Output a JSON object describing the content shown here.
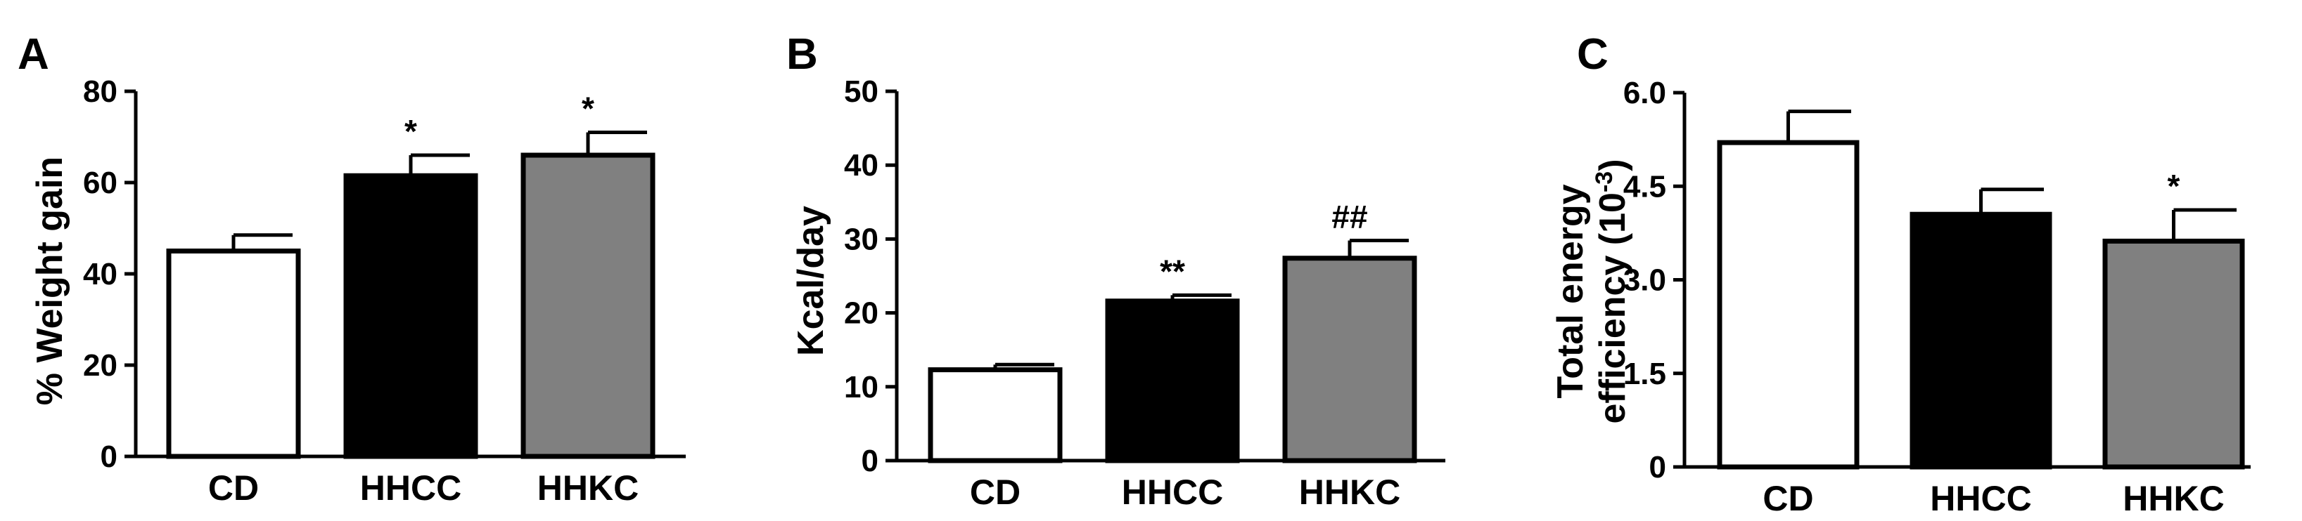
{
  "chart_data": [
    {
      "type": "bar",
      "panel": "A",
      "categories": [
        "CD",
        "HHCC",
        "HHKC"
      ],
      "values": [
        45,
        61.5,
        66
      ],
      "errors": [
        3.5,
        4.5,
        5
      ],
      "annotations": [
        "",
        "*",
        "*"
      ],
      "colors": [
        "#ffffff",
        "#000000",
        "#808080"
      ],
      "ylabel": "% Weight gain",
      "ylim": [
        0,
        80
      ],
      "yticks": [
        "0",
        "20",
        "40",
        "60",
        "80"
      ],
      "grid": false
    },
    {
      "type": "bar",
      "panel": "B",
      "categories": [
        "CD",
        "HHCC",
        "HHKC"
      ],
      "values": [
        12.3,
        21.6,
        27.4
      ],
      "errors": [
        0.7,
        0.8,
        2.4
      ],
      "annotations": [
        "",
        "**",
        "##"
      ],
      "colors": [
        "#ffffff",
        "#000000",
        "#808080"
      ],
      "ylabel": "Kcal/day",
      "ylim": [
        0,
        50
      ],
      "yticks": [
        "0",
        "10",
        "20",
        "30",
        "40",
        "50"
      ],
      "grid": false
    },
    {
      "type": "bar",
      "panel": "C",
      "categories": [
        "CD",
        "HHCC",
        "HHKC"
      ],
      "values": [
        5.2,
        4.05,
        3.62
      ],
      "errors": [
        0.5,
        0.4,
        0.5
      ],
      "annotations": [
        "",
        "",
        "*"
      ],
      "colors": [
        "#ffffff",
        "#000000",
        "#808080"
      ],
      "ylabel_line1": "Total energy",
      "ylabel_line2": "efficiency (10",
      "ylabel_sup": "-3",
      "ylabel_close": ")",
      "ylim": [
        0,
        6
      ],
      "yticks": [
        "0",
        "1.5",
        "3.0",
        "4.5",
        "6.0"
      ],
      "grid": false
    }
  ]
}
